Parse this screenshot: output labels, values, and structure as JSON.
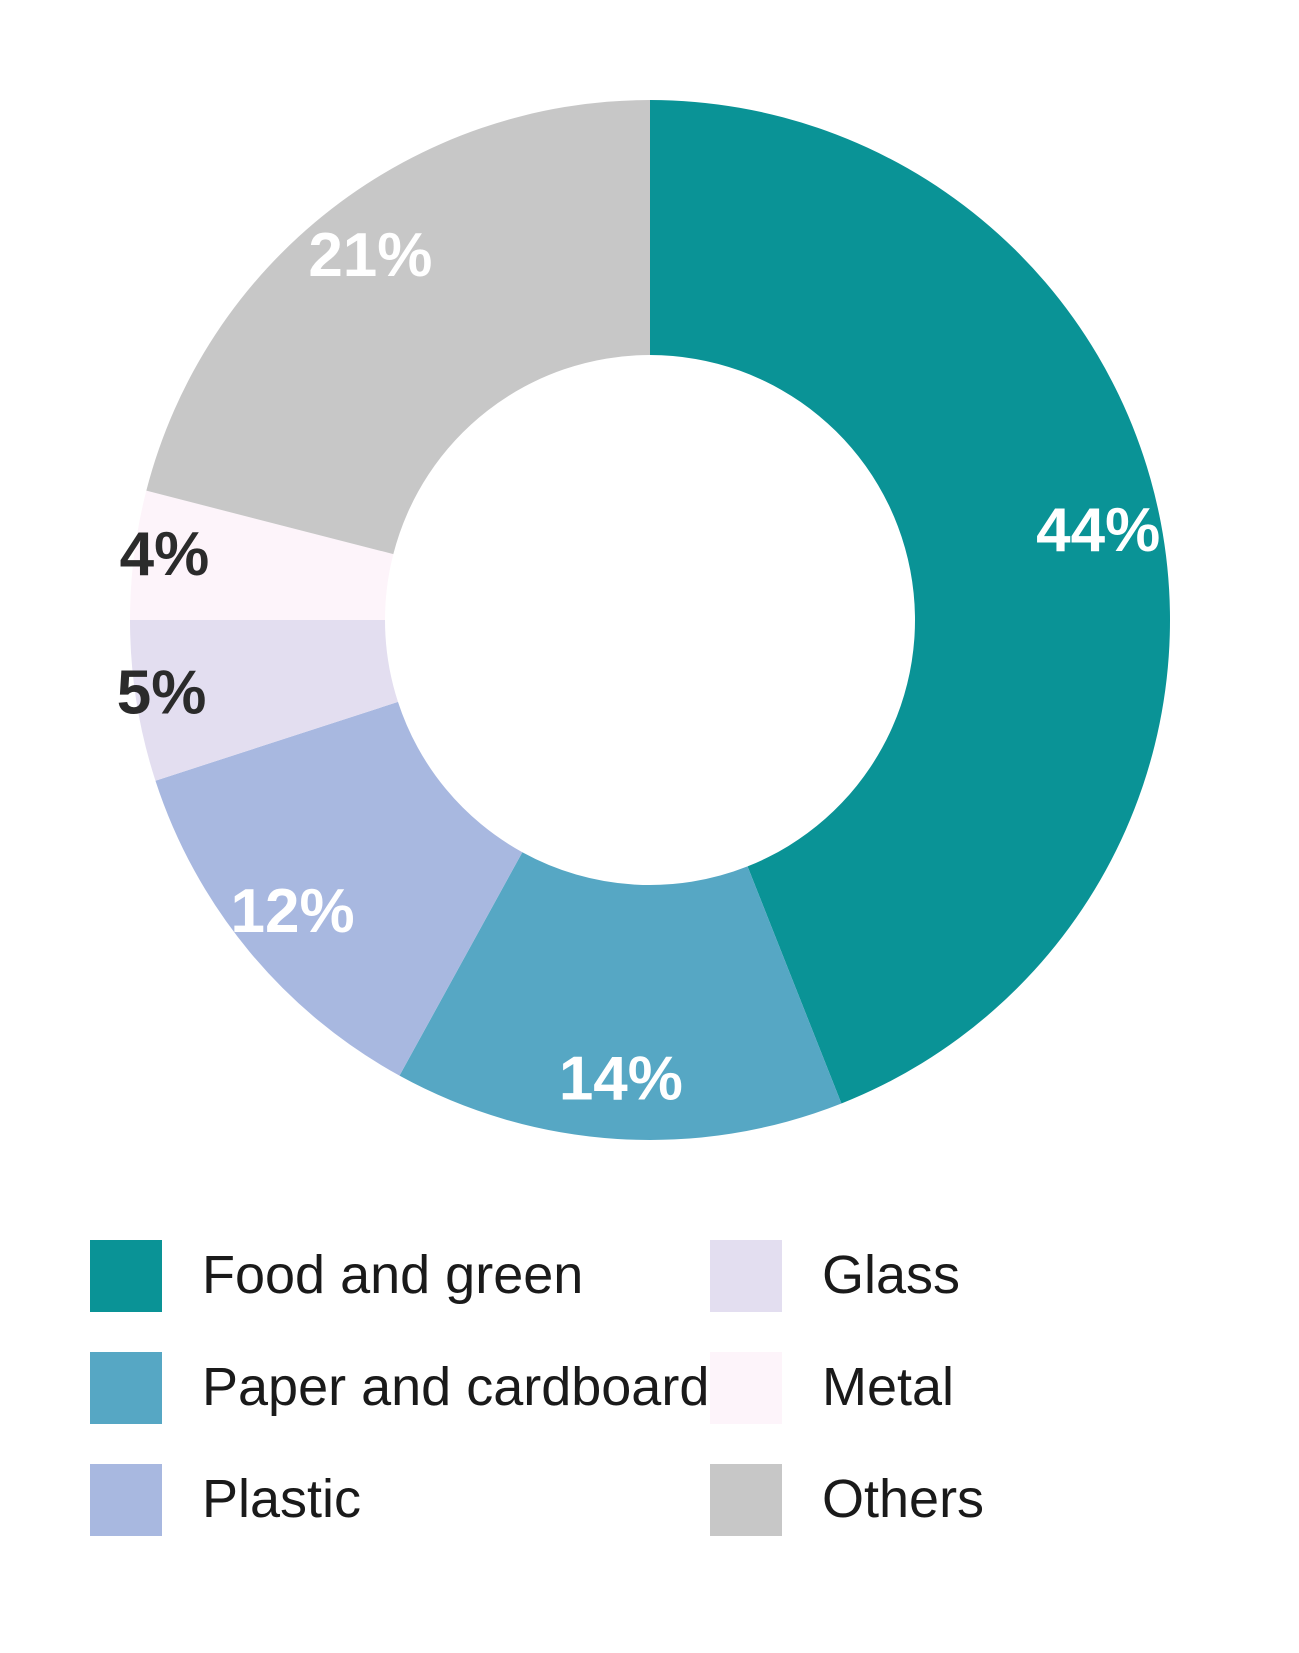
{
  "chart": {
    "type": "donut",
    "background_color": "#ffffff",
    "outer_radius": 520,
    "inner_radius": 265,
    "start_angle_deg": 0,
    "slice_label_fontsize": 62,
    "slice_label_fontweight": "700",
    "slice_label_colors": [
      "#ffffff",
      "#ffffff",
      "#ffffff",
      "#2b2b2b",
      "#2b2b2b",
      "#ffffff"
    ],
    "slice_label_radius_pct": [
      0.75,
      0.78,
      0.78,
      0.9,
      0.88,
      0.75
    ],
    "series": [
      {
        "name": "Food and green",
        "value": 44,
        "label": "44%",
        "color": "#0a9396"
      },
      {
        "name": "Paper and cardboard",
        "value": 14,
        "label": "14%",
        "color": "#56a7c4"
      },
      {
        "name": "Plastic",
        "value": 12,
        "label": "12%",
        "color": "#a8b8e0"
      },
      {
        "name": "Glass",
        "value": 5,
        "label": "5%",
        "color": "#e3def0"
      },
      {
        "name": "Metal",
        "value": 4,
        "label": "4%",
        "color": "#fdf4fa"
      },
      {
        "name": "Others",
        "value": 21,
        "label": "21%",
        "color": "#c7c7c7"
      }
    ],
    "legend": {
      "fontsize": 54,
      "text_color": "#1a1a1a",
      "swatch_size": 72,
      "columns": 2,
      "order": [
        0,
        3,
        1,
        4,
        2,
        5
      ]
    }
  }
}
